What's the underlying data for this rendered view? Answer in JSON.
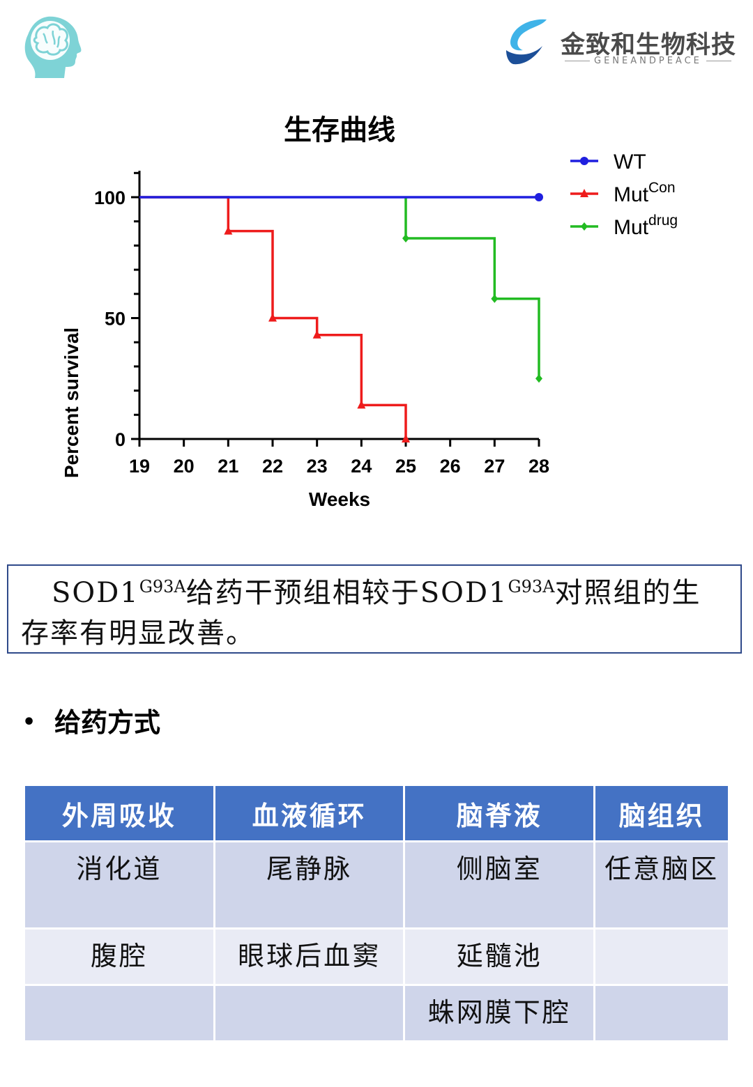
{
  "brand": {
    "name": "金致和生物科技",
    "sub": "GENEANDPEACE"
  },
  "chart_data": {
    "type": "line",
    "title": "生存曲线",
    "xlabel": "Weeks",
    "ylabel": "Percent survival",
    "xlim": [
      19,
      28
    ],
    "ylim": [
      0,
      100
    ],
    "xticks": [
      19,
      20,
      21,
      22,
      23,
      24,
      25,
      26,
      27,
      28
    ],
    "yticks": [
      0,
      50,
      100
    ],
    "legend_position": "top-right",
    "series": [
      {
        "name": "WT",
        "sup": "",
        "color": "#1f1fdf",
        "marker": "circle",
        "x": [
          19,
          28
        ],
        "y": [
          100,
          100
        ],
        "marker_x": [
          28
        ],
        "marker_y": [
          100
        ]
      },
      {
        "name": "Mut",
        "sup": "Con",
        "color": "#ee1c1c",
        "marker": "triangle",
        "x": [
          19,
          21,
          21,
          22,
          22,
          23,
          23,
          24,
          24,
          25,
          25
        ],
        "y": [
          100,
          100,
          86,
          86,
          50,
          50,
          43,
          43,
          14,
          14,
          0
        ],
        "marker_x": [
          21,
          22,
          23,
          24,
          25
        ],
        "marker_y": [
          86,
          50,
          43,
          14,
          0
        ]
      },
      {
        "name": "Mut",
        "sup": "drug",
        "color": "#22bb22",
        "marker": "diamond",
        "x": [
          25,
          25,
          27,
          27,
          28,
          28
        ],
        "y": [
          100,
          83,
          83,
          58,
          58,
          25
        ],
        "marker_x": [
          25,
          27,
          28
        ],
        "marker_y": [
          83,
          58,
          25
        ]
      }
    ]
  },
  "caption": {
    "part1": "SOD1",
    "sup1": "G93A",
    "part2": "给药干预组相较于SOD1",
    "sup2": "G93A",
    "part3": "对照组的生存率有明显改善。"
  },
  "section": {
    "bullet": "•",
    "title": "给药方式"
  },
  "table": {
    "headers": [
      "外周吸收",
      "血液循环",
      "脑脊液",
      "脑组织"
    ],
    "rows": [
      [
        "消化道",
        "尾静脉",
        "侧脑室",
        "任意脑区"
      ],
      [
        "腹腔",
        "眼球后血窦",
        "延髓池",
        ""
      ],
      [
        "",
        "",
        "蛛网膜下腔",
        ""
      ]
    ]
  }
}
